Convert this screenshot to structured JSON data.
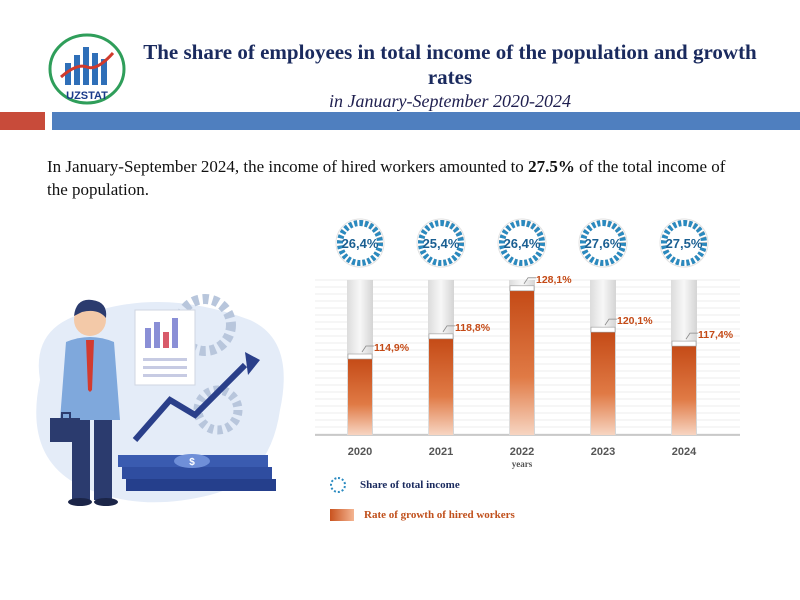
{
  "logo": {
    "text": "UZSTAT"
  },
  "title": {
    "line1": "The share of employees in total income of the population and growth rates",
    "line2": "in January-September 2020-2024"
  },
  "intro": {
    "before": "In January-September 2024, the income of hired workers amounted to ",
    "highlight": "27.5%",
    "after": " of the total income of the population."
  },
  "chart_data": {
    "type": "bar",
    "categories": [
      "2020",
      "2021",
      "2022",
      "2023",
      "2024"
    ],
    "xlabel": "years",
    "series": [
      {
        "name": "Share of total income",
        "values": [
          26.4,
          25.4,
          26.4,
          27.6,
          27.5
        ],
        "labels": [
          "26,4%",
          "25,4%",
          "26,4%",
          "27,6%",
          "27,5%"
        ]
      },
      {
        "name": "Rate of growth of hired workers",
        "values": [
          114.9,
          118.8,
          128.1,
          120.1,
          117.4
        ],
        "labels": [
          "114,9%",
          "118,8%",
          "128,1%",
          "120,1%",
          "117,4%"
        ]
      }
    ],
    "colors": {
      "share": "#2a8ac0",
      "growth": "#c9531f",
      "track": "#e8e8e8",
      "ring": "#9a9a9a"
    },
    "legend": "bottom-left"
  },
  "legend": {
    "share_label": "Share of total income",
    "growth_label": "Rate of growth of hired workers"
  }
}
